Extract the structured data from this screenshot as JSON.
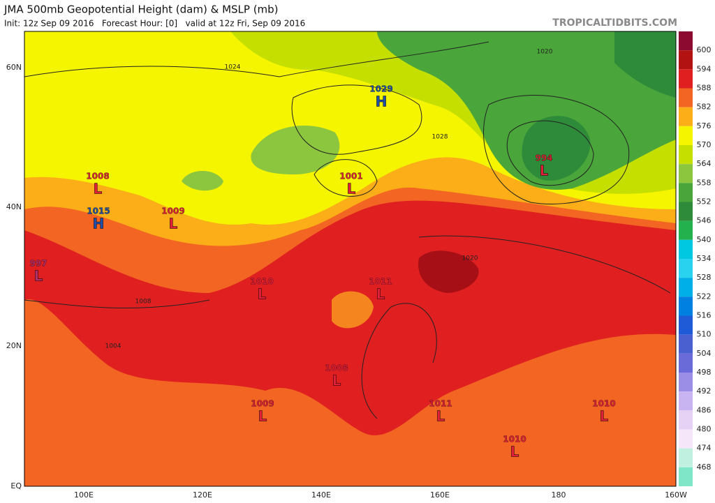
{
  "header": {
    "title": "JMA 500mb Geopotential Height (dam) & MSLP (mb)",
    "subtitle": "Init: 12z Sep 09 2016   Forecast Hour: [0]   valid at 12z Fri, Sep 09 2016",
    "source": "TROPICALTIDBITS.COM"
  },
  "lat_labels": [
    "60N",
    "40N",
    "20N",
    "EQ"
  ],
  "lon_labels": [
    "100E",
    "120E",
    "140E",
    "160E",
    "180",
    "160W"
  ],
  "colorbar": {
    "labels": [
      600,
      594,
      588,
      582,
      576,
      570,
      564,
      558,
      552,
      546,
      540,
      534,
      528,
      522,
      516,
      510,
      504,
      498,
      492,
      486,
      480,
      474,
      468
    ],
    "colors": [
      "#8c0a30",
      "#b31212",
      "#e02020",
      "#f26522",
      "#fbae17",
      "#f5f500",
      "#c5e000",
      "#8cc63f",
      "#4aa53a",
      "#2e8b3a",
      "#22b14c",
      "#00c8e0",
      "#29d3f0",
      "#00aee8",
      "#0080e0",
      "#1f5bd6",
      "#4a5fd0",
      "#6a6ad8",
      "#9a8ee6",
      "#c8b4f0",
      "#e6d2f5",
      "#f5e6fa",
      "#c0f0e0",
      "#7fe6c8"
    ]
  },
  "centers": [
    {
      "value": 1029,
      "symbol": "H",
      "color": "#1f4fa8"
    },
    {
      "value": 1008,
      "symbol": "L",
      "color": "#e0203a"
    },
    {
      "value": 1015,
      "symbol": "H",
      "color": "#1f4fa8"
    },
    {
      "value": 1009,
      "symbol": "L",
      "color": "#e0203a"
    },
    {
      "value": 1001,
      "symbol": "L",
      "color": "#e0203a"
    },
    {
      "value": 994,
      "symbol": "L",
      "color": "#e0203a"
    },
    {
      "value": 997,
      "symbol": "L",
      "color": "#b0306a"
    },
    {
      "value": 1010,
      "symbol": "L",
      "color": "#e0203a"
    },
    {
      "value": 1011,
      "symbol": "L",
      "color": "#e0203a"
    },
    {
      "value": 1008,
      "symbol": "L",
      "color": "#e0203a"
    },
    {
      "value": 1009,
      "symbol": "L",
      "color": "#e0203a"
    },
    {
      "value": 1011,
      "symbol": "L",
      "color": "#e0203a"
    },
    {
      "value": 1010,
      "symbol": "L",
      "color": "#e0203a"
    },
    {
      "value": 1010,
      "symbol": "L",
      "color": "#e0203a"
    }
  ],
  "contour_labels": [
    1024,
    1020,
    1028,
    1020,
    1008,
    1004
  ]
}
